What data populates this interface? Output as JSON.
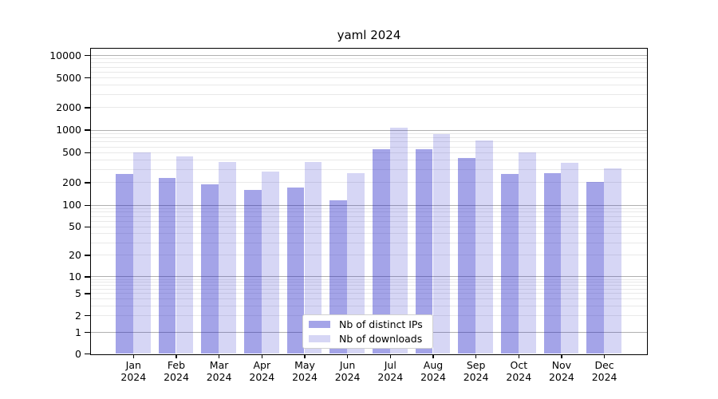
{
  "chart_data": {
    "type": "bar",
    "title": "yaml 2024",
    "categories": [
      "Jan",
      "Feb",
      "Mar",
      "Apr",
      "May",
      "Jun",
      "Jul",
      "Aug",
      "Sep",
      "Oct",
      "Nov",
      "Dec"
    ],
    "year": "2024",
    "series": [
      {
        "name": "Nb of distinct IPs",
        "color": "rgba(28,28,198,0.40)",
        "values": [
          260,
          230,
          190,
          160,
          170,
          115,
          550,
          550,
          420,
          260,
          265,
          200
        ]
      },
      {
        "name": "Nb of downloads",
        "color": "rgba(28,28,198,0.18)",
        "values": [
          505,
          445,
          375,
          280,
          375,
          265,
          1080,
          880,
          730,
          505,
          360,
          310
        ]
      }
    ],
    "xlabel": "",
    "ylabel": "",
    "yaxis": {
      "scale": "symlog",
      "ylim": [
        0,
        12000
      ],
      "ticks": [
        10000,
        5000,
        2000,
        1000,
        500,
        200,
        100,
        50,
        20,
        10,
        5,
        2,
        1,
        0
      ],
      "major_ticks": [
        1,
        10,
        100,
        1000,
        10000
      ]
    },
    "grid": true,
    "legend": {
      "position": "lower-center-inside"
    }
  }
}
